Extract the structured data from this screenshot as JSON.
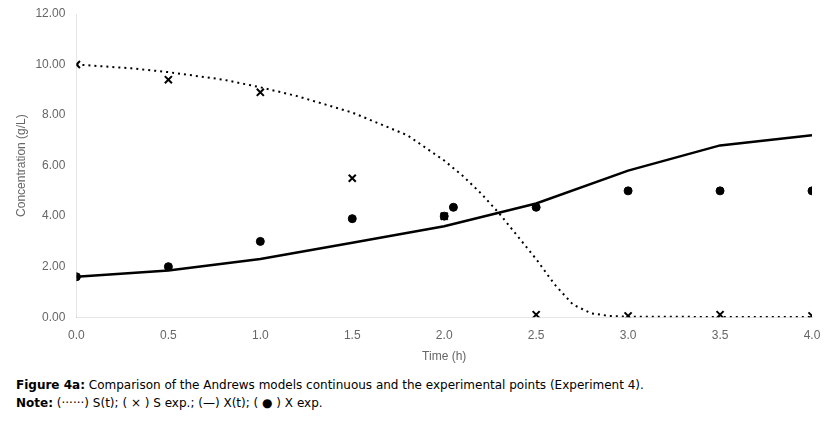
{
  "chart_data": {
    "type": "scatter",
    "title": "",
    "xlabel": "Time (h)",
    "ylabel": "Concentration (g/L)",
    "xlim": [
      0.0,
      4.0
    ],
    "ylim": [
      0.0,
      12.0
    ],
    "xticks": [
      {
        "value": 0.0,
        "label": "0.0"
      },
      0.5,
      {
        "value": 1.0,
        "label": "1.0"
      },
      1.5,
      {
        "value": 2.0,
        "label": "2.0"
      },
      2.5,
      {
        "value": 3.0,
        "label": "3.0"
      },
      3.5,
      {
        "value": 4.0,
        "label": "4.0"
      }
    ],
    "yticks": [
      {
        "value": 0.0,
        "label": "0.00"
      },
      {
        "value": 2.0,
        "label": "2.00"
      },
      {
        "value": 4.0,
        "label": "4.00"
      },
      {
        "value": 6.0,
        "label": "6.00"
      },
      {
        "value": 8.0,
        "label": "8.00"
      },
      {
        "value": 10.0,
        "label": "10.00"
      },
      {
        "value": 12.0,
        "label": "12.00"
      }
    ],
    "grid": false,
    "series": [
      {
        "type": "line",
        "line_style": "dotted",
        "color": "#000000",
        "x": [
          0.0,
          0.3,
          0.5,
          0.8,
          1.0,
          1.2,
          1.5,
          1.8,
          2.0,
          2.1,
          2.2,
          2.3,
          2.4,
          2.5,
          2.55,
          2.6,
          2.65,
          2.7,
          2.8,
          2.9,
          3.0,
          3.5,
          4.0
        ],
        "values": [
          10.0,
          9.85,
          9.7,
          9.4,
          9.1,
          8.75,
          8.1,
          7.2,
          6.2,
          5.6,
          4.9,
          4.1,
          3.2,
          2.3,
          1.8,
          1.3,
          0.9,
          0.5,
          0.15,
          0.05,
          0.02,
          0.01,
          0.005
        ]
      },
      {
        "type": "line",
        "line_style": "solid",
        "color": "#000000",
        "x": [
          0.0,
          0.5,
          1.0,
          1.5,
          2.0,
          2.5,
          3.0,
          3.5,
          4.0
        ],
        "values": [
          1.6,
          1.85,
          2.3,
          2.95,
          3.6,
          4.5,
          5.8,
          6.8,
          7.2
        ]
      },
      {
        "type": "scatter",
        "marker": "x",
        "color": "#000000",
        "x": [
          0.0,
          0.5,
          1.0,
          1.5,
          2.0,
          2.5,
          3.0,
          3.5,
          4.0
        ],
        "values": [
          10.0,
          9.4,
          8.9,
          5.5,
          4.0,
          0.1,
          0.05,
          0.1,
          0.05
        ]
      },
      {
        "type": "scatter",
        "marker": "circle",
        "color": "#000000",
        "x": [
          0.0,
          0.5,
          1.0,
          1.5,
          2.0,
          2.05,
          2.5,
          3.0,
          3.5,
          4.0
        ],
        "values": [
          1.6,
          2.0,
          3.0,
          3.9,
          4.0,
          4.35,
          4.35,
          5.0,
          5.0,
          5.0
        ]
      }
    ],
    "annotations": [
      {
        "bold": "Figure 4a:",
        "text": " Comparison of the Andrews models continuous and the experimental points (Experiment 4)."
      },
      {
        "bold": "Note:",
        "text": " (······) S(t); ( × ) S exp.; (—) X(t); ( ● ) X exp."
      }
    ]
  }
}
